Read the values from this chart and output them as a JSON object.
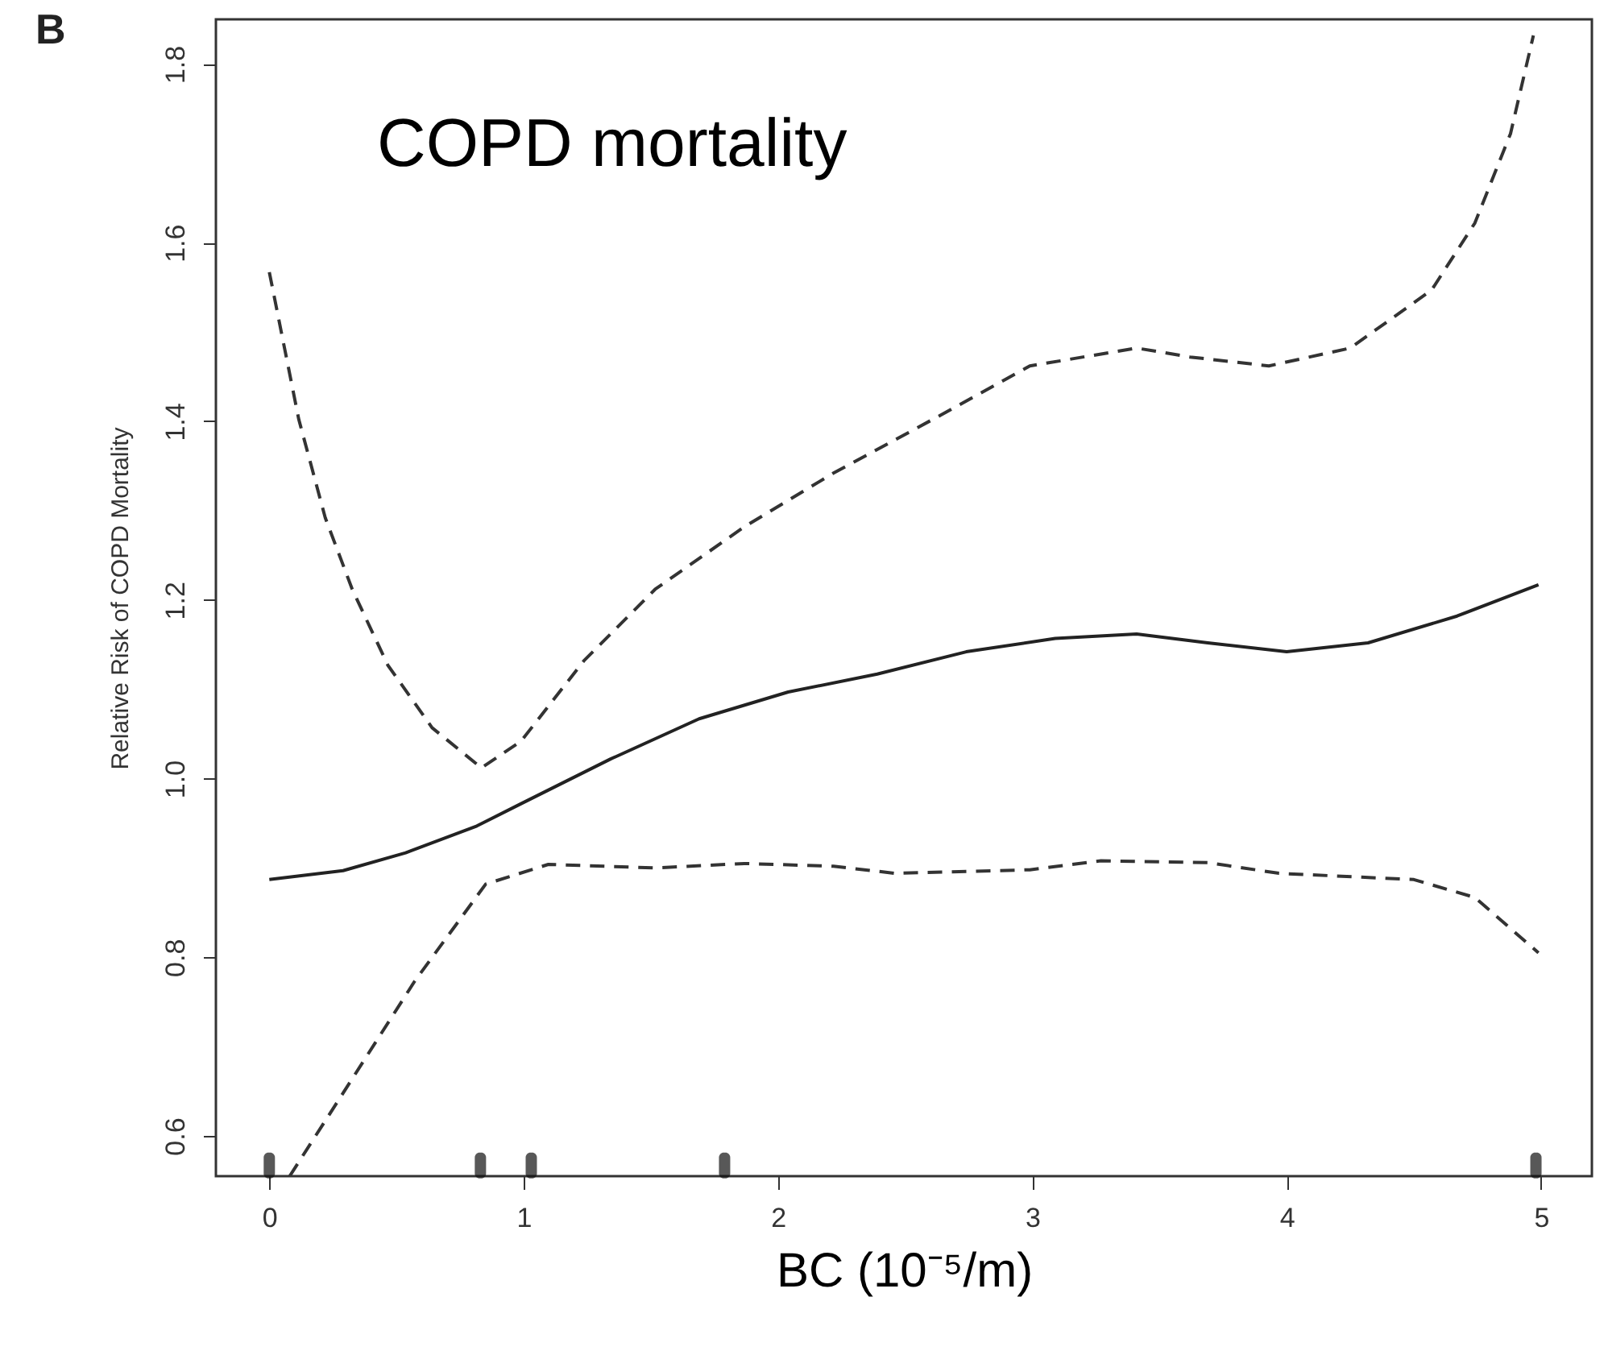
{
  "chart_data": {
    "type": "line",
    "title": "COPD mortality",
    "xlabel": "BC (10⁻⁵/m)",
    "ylabel": "Relative Risk of COPD Mortality",
    "annotations": [
      "B"
    ],
    "xlim": [
      -0.21,
      5.2
    ],
    "xticks": [
      0,
      1,
      2,
      3,
      4,
      5
    ],
    "ylim": [
      0.555,
      1.85
    ],
    "yticks": [
      0.6,
      0.8,
      {
        "value": 1,
        "label": "1.0"
      },
      1.2,
      1.4,
      1.6,
      1.8
    ],
    "grid": false,
    "marker": "none",
    "series": [
      {
        "color": "#222222",
        "line_style": "solid",
        "x": [
          0,
          0.29,
          0.536,
          0.816,
          0.99,
          1.342,
          1.69,
          2.04,
          2.39,
          2.74,
          3.09,
          3.41,
          3.69,
          4.0,
          4.32,
          4.67,
          4.99
        ],
        "values": [
          0.887,
          0.897,
          0.917,
          0.947,
          0.972,
          1.022,
          1.067,
          1.097,
          1.117,
          1.142,
          1.157,
          1.162,
          1.152,
          1.142,
          1.152,
          1.182,
          1.217
        ]
      },
      {
        "color": "#333333",
        "line_style": "dashed",
        "x": [
          0,
          0.116,
          0.22,
          0.326,
          0.466,
          0.64,
          0.834,
          0.99,
          1.237,
          1.517,
          1.868,
          2.218,
          2.64,
          2.99,
          3.41,
          3.62,
          3.93,
          4.25,
          4.57,
          4.74,
          4.88,
          4.97
        ],
        "values": [
          1.567,
          1.402,
          1.292,
          1.212,
          1.127,
          1.057,
          1.012,
          1.042,
          1.132,
          1.212,
          1.282,
          1.342,
          1.407,
          1.462,
          1.482,
          1.472,
          1.462,
          1.482,
          1.547,
          1.622,
          1.722,
          1.832
        ]
      },
      {
        "color": "#333333",
        "line_style": "dashed",
        "x": [
          0.08,
          0.29,
          0.571,
          0.851,
          1.097,
          1.517,
          1.868,
          2.218,
          2.46,
          2.99,
          3.27,
          3.69,
          3.97,
          4.5,
          4.74,
          4.99
        ],
        "values": [
          0.555,
          0.648,
          0.773,
          0.882,
          0.904,
          0.9,
          0.905,
          0.902,
          0.894,
          0.898,
          0.908,
          0.906,
          0.894,
          0.887,
          0.867,
          0.805
        ]
      },
      {
        "type": "scatter",
        "marker": "square",
        "color": "#111111",
        "x": [
          0,
          0.83,
          1.03,
          1.79,
          4.98
        ],
        "values": [
          0.567,
          0.567,
          0.567,
          0.567,
          0.567
        ]
      }
    ]
  }
}
